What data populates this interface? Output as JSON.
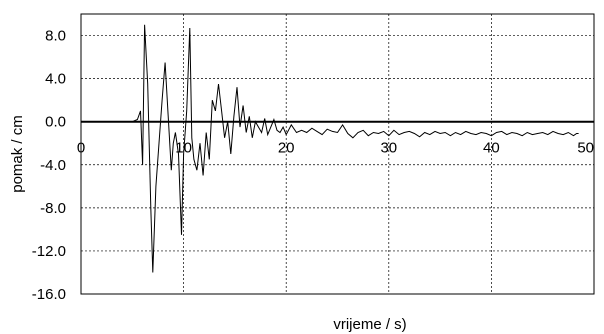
{
  "chart_data": {
    "type": "line",
    "title": "",
    "xlabel": "vrijeme / s)",
    "ylabel": "pomak / cm",
    "xlim": [
      0,
      50
    ],
    "ylim": [
      -16,
      10
    ],
    "xticks": [
      {
        "value": 0,
        "label": "0"
      },
      {
        "value": 10,
        "label": "10"
      },
      {
        "value": 20,
        "label": "20"
      },
      {
        "value": 30,
        "label": "30"
      },
      {
        "value": 40,
        "label": "40"
      },
      {
        "value": 50,
        "label": "50"
      }
    ],
    "yticks": [
      {
        "value": 8,
        "label": "8.0"
      },
      {
        "value": 4,
        "label": "4.0"
      },
      {
        "value": 0,
        "label": "0.0"
      },
      {
        "value": -4,
        "label": "-4.0"
      },
      {
        "value": -8,
        "label": "-8.0"
      },
      {
        "value": -12,
        "label": "-12.0"
      },
      {
        "value": -16,
        "label": "-16.0"
      }
    ],
    "grid": true,
    "series_color": "#000000",
    "series": [
      {
        "x": [
          5.0,
          5.5,
          5.8,
          6.0,
          6.2,
          6.5,
          6.8,
          7.0,
          7.3,
          7.6,
          7.9,
          8.2,
          8.5,
          8.8,
          9.0,
          9.2,
          9.5,
          9.8,
          10.0,
          10.3,
          10.6,
          10.8,
          11.0,
          11.3,
          11.6,
          11.9,
          12.2,
          12.5,
          12.8,
          13.1,
          13.4,
          13.7,
          14.0,
          14.3,
          14.6,
          14.9,
          15.2,
          15.5,
          15.8,
          16.1,
          16.4,
          16.7,
          17.0,
          17.3,
          17.6,
          17.9,
          18.2,
          18.5,
          18.8,
          19.1,
          19.4,
          19.7,
          20.0,
          20.5,
          21.0,
          21.5,
          22.0,
          22.5,
          23.0,
          23.5,
          24.0,
          24.5,
          25.0,
          25.5,
          26.0,
          26.5,
          27.0,
          27.5,
          28.0,
          28.5,
          29.0,
          29.5,
          30.0,
          30.5,
          31.0,
          31.5,
          32.0,
          32.5,
          33.0,
          33.5,
          34.0,
          34.5,
          35.0,
          35.5,
          36.0,
          36.5,
          37.0,
          37.5,
          38.0,
          38.5,
          39.0,
          39.5,
          40.0,
          40.5,
          41.0,
          41.5,
          42.0,
          42.5,
          43.0,
          43.5,
          44.0,
          44.5,
          45.0,
          45.5,
          46.0,
          46.5,
          47.0,
          47.5,
          48.0,
          48.3,
          48.5
        ],
        "y": [
          0.0,
          0.2,
          1.0,
          -4.0,
          9.0,
          3.5,
          -8.0,
          -14.0,
          -6.0,
          -2.0,
          2.0,
          5.5,
          0.5,
          -4.5,
          -2.0,
          -1.0,
          -3.0,
          -10.5,
          -3.0,
          1.0,
          8.7,
          -1.5,
          -3.5,
          -4.5,
          -2.0,
          -5.0,
          -1.0,
          -3.5,
          2.0,
          1.0,
          3.5,
          1.0,
          -1.5,
          0.0,
          -3.0,
          0.5,
          3.2,
          -0.5,
          1.5,
          -1.0,
          0.5,
          -1.5,
          0.0,
          -0.5,
          -1.0,
          0.3,
          -1.2,
          -0.5,
          0.2,
          -0.8,
          -1.0,
          -0.5,
          -1.2,
          -0.3,
          -1.0,
          -0.8,
          -1.0,
          -0.6,
          -0.9,
          -1.2,
          -0.7,
          -0.9,
          -1.0,
          -0.3,
          -1.1,
          -1.5,
          -1.0,
          -0.8,
          -1.3,
          -1.0,
          -1.1,
          -0.9,
          -1.3,
          -0.8,
          -1.2,
          -1.0,
          -0.9,
          -1.1,
          -1.4,
          -1.0,
          -1.2,
          -0.9,
          -1.1,
          -1.0,
          -1.3,
          -1.0,
          -1.2,
          -0.9,
          -1.1,
          -1.2,
          -1.0,
          -1.1,
          -1.3,
          -1.0,
          -0.9,
          -1.2,
          -1.0,
          -1.1,
          -1.3,
          -1.0,
          -1.2,
          -1.1,
          -1.0,
          -1.2,
          -0.9,
          -1.1,
          -1.2,
          -1.0,
          -1.3,
          -1.1,
          -1.1
        ]
      }
    ]
  }
}
